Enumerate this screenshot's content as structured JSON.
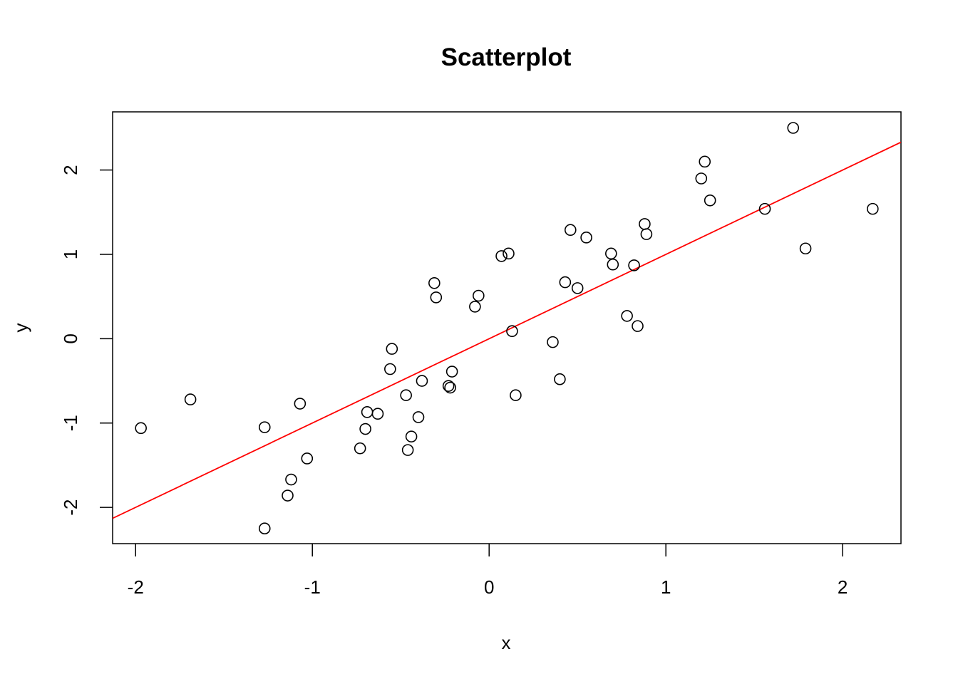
{
  "chart_data": {
    "type": "scatter",
    "title": "Scatterplot",
    "xlabel": "x",
    "ylabel": "y",
    "xlim": [
      -2.13,
      2.33
    ],
    "ylim": [
      -2.43,
      2.69
    ],
    "xticks": [
      -2,
      -1,
      0,
      1,
      2
    ],
    "yticks": [
      -2,
      -1,
      0,
      1,
      2
    ],
    "xtick_labels": [
      "-2",
      "-1",
      "0",
      "1",
      "2"
    ],
    "ytick_labels": [
      "-2",
      "-1",
      "0",
      "1",
      "2"
    ],
    "grid": false,
    "legend": "none",
    "point_color": "#000000",
    "line_color": "#ff0000",
    "regression_line": {
      "intercept": 0.0,
      "slope": 1.0
    },
    "points": [
      {
        "x": -1.97,
        "y": -1.06
      },
      {
        "x": -1.69,
        "y": -0.72
      },
      {
        "x": -1.27,
        "y": -1.05
      },
      {
        "x": -1.27,
        "y": -2.25
      },
      {
        "x": -1.14,
        "y": -1.86
      },
      {
        "x": -1.12,
        "y": -1.67
      },
      {
        "x": -1.07,
        "y": -0.77
      },
      {
        "x": -1.03,
        "y": -1.42
      },
      {
        "x": -0.73,
        "y": -1.3
      },
      {
        "x": -0.7,
        "y": -1.07
      },
      {
        "x": -0.69,
        "y": -0.87
      },
      {
        "x": -0.63,
        "y": -0.89
      },
      {
        "x": -0.56,
        "y": -0.36
      },
      {
        "x": -0.55,
        "y": -0.12
      },
      {
        "x": -0.47,
        "y": -0.67
      },
      {
        "x": -0.46,
        "y": -1.32
      },
      {
        "x": -0.44,
        "y": -1.16
      },
      {
        "x": -0.4,
        "y": -0.93
      },
      {
        "x": -0.38,
        "y": -0.5
      },
      {
        "x": -0.31,
        "y": 0.66
      },
      {
        "x": -0.3,
        "y": 0.49
      },
      {
        "x": -0.23,
        "y": -0.56
      },
      {
        "x": -0.22,
        "y": -0.58
      },
      {
        "x": -0.21,
        "y": -0.39
      },
      {
        "x": -0.08,
        "y": 0.38
      },
      {
        "x": -0.06,
        "y": 0.51
      },
      {
        "x": 0.07,
        "y": 0.98
      },
      {
        "x": 0.11,
        "y": 1.01
      },
      {
        "x": 0.13,
        "y": 0.09
      },
      {
        "x": 0.15,
        "y": -0.67
      },
      {
        "x": 0.36,
        "y": -0.04
      },
      {
        "x": 0.4,
        "y": -0.48
      },
      {
        "x": 0.43,
        "y": 0.67
      },
      {
        "x": 0.46,
        "y": 1.29
      },
      {
        "x": 0.5,
        "y": 0.6
      },
      {
        "x": 0.55,
        "y": 1.2
      },
      {
        "x": 0.69,
        "y": 1.01
      },
      {
        "x": 0.7,
        "y": 0.88
      },
      {
        "x": 0.78,
        "y": 0.27
      },
      {
        "x": 0.82,
        "y": 0.87
      },
      {
        "x": 0.84,
        "y": 0.15
      },
      {
        "x": 0.88,
        "y": 1.36
      },
      {
        "x": 0.89,
        "y": 1.24
      },
      {
        "x": 1.2,
        "y": 1.9
      },
      {
        "x": 1.22,
        "y": 2.1
      },
      {
        "x": 1.25,
        "y": 1.64
      },
      {
        "x": 1.56,
        "y": 1.54
      },
      {
        "x": 1.72,
        "y": 2.5
      },
      {
        "x": 1.79,
        "y": 1.07
      },
      {
        "x": 2.17,
        "y": 1.54
      }
    ]
  }
}
